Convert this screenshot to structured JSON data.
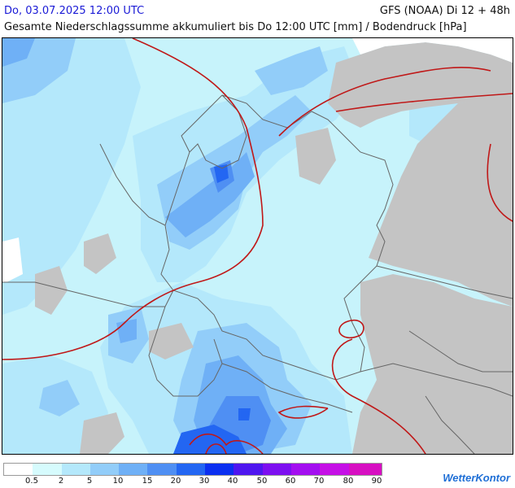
{
  "header": {
    "datetime": "Do, 03.07.2025 12:00 UTC",
    "model_run": "GFS (NOAA) Di 12 + 48h",
    "subtitle": "Gesamte Niederschlagssumme akkumuliert bis Do 12:00 UTC [mm] / Bodendruck [hPa]"
  },
  "legend": {
    "labels": [
      "0.5",
      "2",
      "5",
      "10",
      "15",
      "20",
      "30",
      "40",
      "50",
      "60",
      "70",
      "80",
      "90"
    ],
    "colors": [
      "#ffffff",
      "#d6fbfd",
      "#b4e8fb",
      "#92cdf9",
      "#6fb0f6",
      "#4f8ff3",
      "#2366f2",
      "#0b2ff0",
      "#4e16ef",
      "#7d0ff0",
      "#a30ef0",
      "#c50fe6",
      "#d70fc2"
    ]
  },
  "colors": {
    "land_gray": "#c4c4c4",
    "isobar": "#c01818",
    "border": "#666666"
  },
  "logo": {
    "text": "WetterKontor"
  }
}
